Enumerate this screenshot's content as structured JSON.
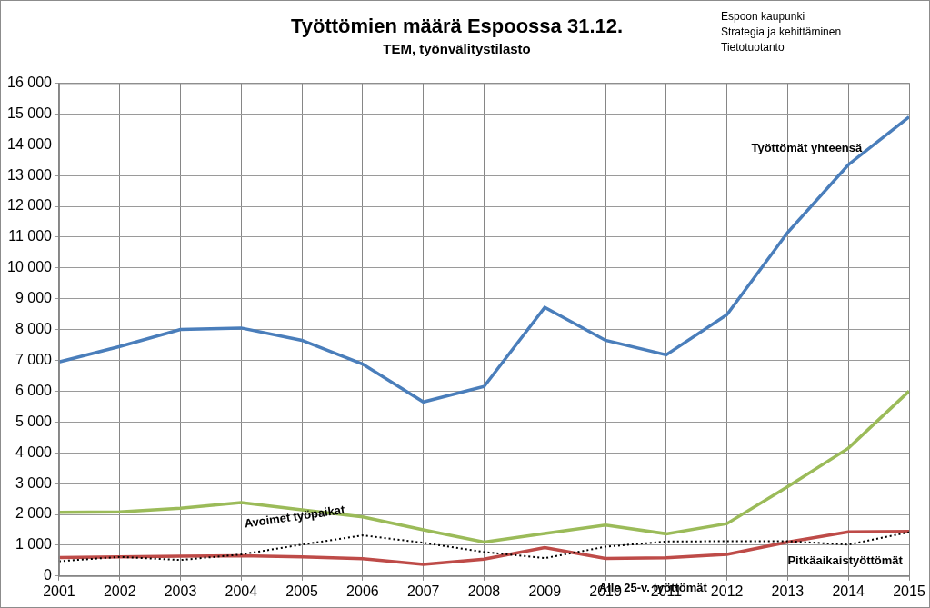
{
  "chart_data": {
    "type": "line",
    "title": "Työttömien määrä Espoossa 31.12.",
    "subtitle": "TEM, työnvälitystilasto",
    "annotations": [
      "Espoon kaupunki",
      "Strategia ja kehittäminen",
      "Tietotuotanto"
    ],
    "categories": [
      "2001",
      "2002",
      "2003",
      "2004",
      "2005",
      "2006",
      "2007",
      "2008",
      "2009",
      "2010",
      "2011",
      "2012",
      "2013",
      "2014",
      "2015"
    ],
    "series": [
      {
        "name": "Työttömät yhteensä",
        "color": "#4a7ebb",
        "line_style": "solid",
        "marker": "none",
        "values": [
          6950,
          7450,
          8000,
          8050,
          7650,
          6880,
          5650,
          6150,
          8720,
          7650,
          7180,
          8480,
          11150,
          13350,
          14900
        ]
      },
      {
        "name": "Pitkäaikaistyöttömät",
        "color": "#9bbb59",
        "line_style": "solid",
        "marker": "none",
        "values": [
          2070,
          2080,
          2200,
          2380,
          2150,
          1920,
          1500,
          1100,
          1380,
          1650,
          1370,
          1700,
          2900,
          4150,
          6000
        ]
      },
      {
        "name": "Avoimet työpaikat",
        "color": "#000000",
        "line_style": "dotted",
        "marker": "none",
        "values": [
          480,
          620,
          520,
          700,
          1020,
          1320,
          1080,
          780,
          580,
          950,
          1120,
          1130,
          1130,
          1020,
          1420
        ]
      },
      {
        "name": "Alle 25-v. työttömät",
        "color": "#be4b48",
        "line_style": "solid",
        "marker": "none",
        "values": [
          600,
          620,
          640,
          660,
          620,
          560,
          380,
          550,
          920,
          570,
          590,
          700,
          1100,
          1430,
          1450
        ]
      }
    ],
    "ylim": [
      0,
      16000
    ],
    "yticks": [
      0,
      {
        "value": 1000,
        "label": "1 000"
      },
      {
        "value": 2000,
        "label": "2 000"
      },
      {
        "value": 3000,
        "label": "3 000"
      },
      {
        "value": 4000,
        "label": "4 000"
      },
      {
        "value": 5000,
        "label": "5 000"
      },
      {
        "value": 6000,
        "label": "6 000"
      },
      {
        "value": 7000,
        "label": "7 000"
      },
      {
        "value": 8000,
        "label": "8 000"
      },
      {
        "value": 9000,
        "label": "9 000"
      },
      {
        "value": 10000,
        "label": "10 000"
      },
      {
        "value": 11000,
        "label": "11 000"
      },
      {
        "value": 12000,
        "label": "12 000"
      },
      {
        "value": 13000,
        "label": "13 000"
      },
      {
        "value": 14000,
        "label": "14 000"
      },
      {
        "value": 15000,
        "label": "15 000"
      },
      {
        "value": 16000,
        "label": "16 000"
      }
    ],
    "grid": true
  }
}
